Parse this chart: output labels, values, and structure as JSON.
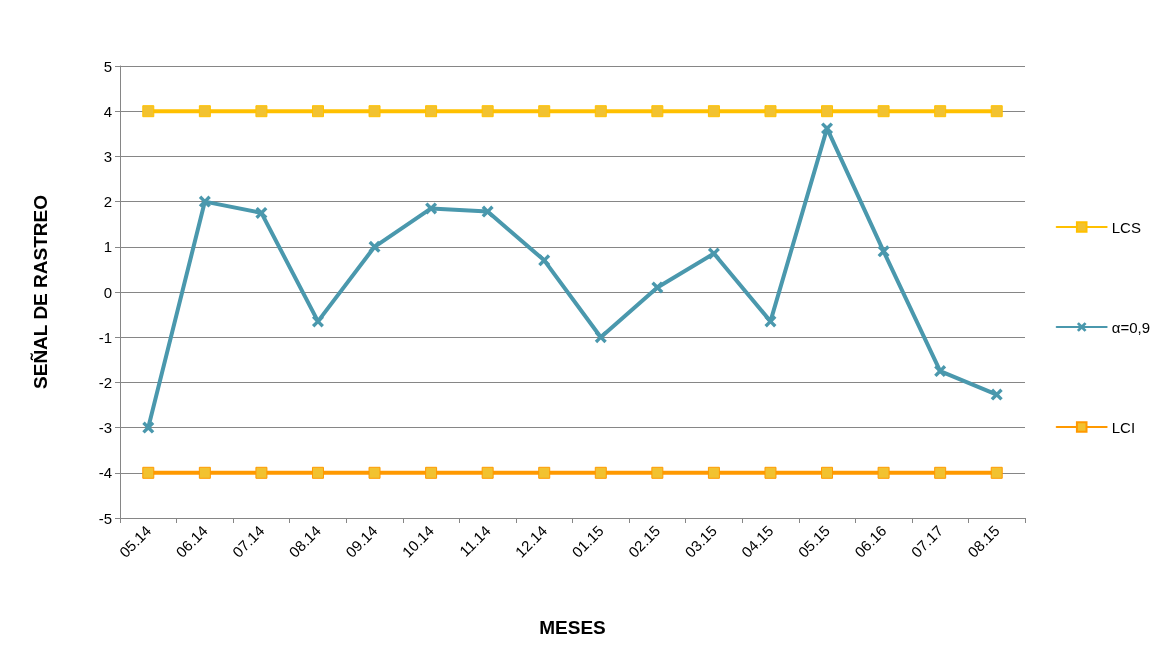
{
  "chart_data": {
    "type": "line",
    "xlabel": "MESES",
    "ylabel": "SEÑAL DE RASTREO",
    "categories": [
      "05.14",
      "06.14",
      "07.14",
      "08.14",
      "09.14",
      "10.14",
      "11.14",
      "12.14",
      "01.15",
      "02.15",
      "03.15",
      "04.15",
      "05.15",
      "06.16",
      "07.17",
      "08.15"
    ],
    "series": [
      {
        "name": "LCS",
        "color": "#ffc000",
        "marker": "square",
        "values": [
          4,
          4,
          4,
          4,
          4,
          4,
          4,
          4,
          4,
          4,
          4,
          4,
          4,
          4,
          4,
          4
        ]
      },
      {
        "name": "α=0,9",
        "color": "#4a98ad",
        "marker": "cross",
        "values": [
          -3,
          2,
          1.75,
          -0.65,
          1,
          1.85,
          1.78,
          0.7,
          -1,
          0.1,
          0.85,
          -0.65,
          3.62,
          0.9,
          -1.75,
          -2.27
        ]
      },
      {
        "name": "LCI",
        "color": "#ff9900",
        "marker": "square",
        "values": [
          -4,
          -4,
          -4,
          -4,
          -4,
          -4,
          -4,
          -4,
          -4,
          -4,
          -4,
          -4,
          -4,
          -4,
          -4,
          -4
        ]
      }
    ],
    "ylim": [
      -5,
      5
    ],
    "yticks": [
      -5,
      -4,
      -3,
      -2,
      -1,
      0,
      1,
      2,
      3,
      4,
      5
    ],
    "grid": "y",
    "legend": "right",
    "line_style": "solid"
  }
}
